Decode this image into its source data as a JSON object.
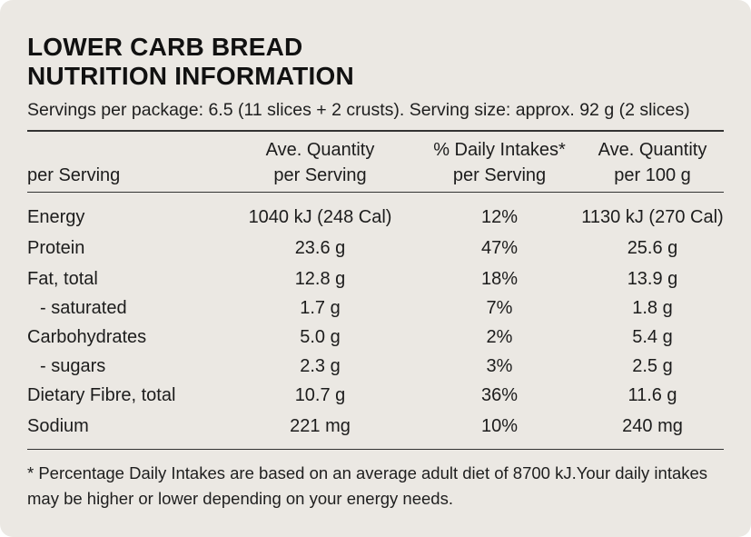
{
  "label": {
    "title_line1": "LOWER CARB BREAD",
    "title_line2": "NUTRITION INFORMATION",
    "servings": "Servings per package: 6.5 (11 slices + 2 crusts). Serving size: approx. 92 g (2 slices)"
  },
  "table": {
    "headers": {
      "col0": "per Serving",
      "col1_line1": "Ave. Quantity",
      "col1_line2": "per Serving",
      "col2_line1": "% Daily Intakes*",
      "col2_line2": "per Serving",
      "col3_line1": "Ave. Quantity",
      "col3_line2": "per 100 g"
    },
    "rows": [
      {
        "name": "Energy",
        "per_serving": "1040 kJ (248 Cal)",
        "daily_intake": "12%",
        "per_100g": "1130 kJ (270 Cal)",
        "sub": false
      },
      {
        "name": "Protein",
        "per_serving": "23.6 g",
        "daily_intake": "47%",
        "per_100g": "25.6 g",
        "sub": false
      },
      {
        "name": "Fat, total",
        "per_serving": "12.8 g",
        "daily_intake": "18%",
        "per_100g": "13.9 g",
        "sub": false
      },
      {
        "name": "- saturated",
        "per_serving": "1.7 g",
        "daily_intake": "7%",
        "per_100g": "1.8 g",
        "sub": true
      },
      {
        "name": "Carbohydrates",
        "per_serving": "5.0 g",
        "daily_intake": "2%",
        "per_100g": "5.4 g",
        "sub": false
      },
      {
        "name": "- sugars",
        "per_serving": "2.3 g",
        "daily_intake": "3%",
        "per_100g": "2.5 g",
        "sub": true
      },
      {
        "name": "Dietary Fibre, total",
        "per_serving": "10.7 g",
        "daily_intake": "36%",
        "per_100g": "11.6 g",
        "sub": false
      },
      {
        "name": "Sodium",
        "per_serving": "221 mg",
        "daily_intake": "10%",
        "per_100g": "240 mg",
        "sub": false
      }
    ]
  },
  "footnote": "* Percentage Daily Intakes are based on an average adult diet of 8700 kJ.Your daily intakes may be higher or lower depending on your energy needs.",
  "colors": {
    "background": "#ebe8e3",
    "text": "#1c1c1c",
    "rules": "#333333"
  }
}
